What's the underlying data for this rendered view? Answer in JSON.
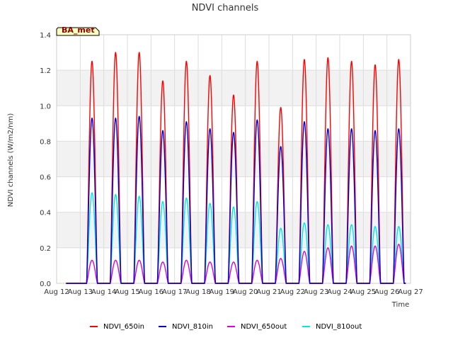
{
  "chart_data": {
    "type": "line",
    "title": "NDVI channels",
    "xlabel": "Time",
    "ylabel": "NDVI channels (W/m2/nm)",
    "ylim": [
      0,
      1.4
    ],
    "yticks": [
      "0.0",
      "0.2",
      "0.4",
      "0.6",
      "0.8",
      "1.0",
      "1.2",
      "1.4"
    ],
    "xlim": [
      12,
      27
    ],
    "xticks": [
      "Aug 12",
      "Aug 13",
      "Aug 14",
      "Aug 15",
      "Aug 16",
      "Aug 17",
      "Aug 18",
      "Aug 19",
      "Aug 20",
      "Aug 21",
      "Aug 22",
      "Aug 23",
      "Aug 24",
      "Aug 25",
      "Aug 26",
      "Aug 27"
    ],
    "badge": "BA_met",
    "grid": true,
    "legend_position": "bottom",
    "day_centers": [
      13.5,
      14.5,
      15.5,
      16.5,
      17.5,
      18.5,
      19.5,
      20.5,
      21.5,
      22.5,
      23.5,
      24.5,
      25.5,
      26.5
    ],
    "series": [
      {
        "name": "NDVI_650in",
        "color": "#ff0000",
        "peaks": [
          1.25,
          1.3,
          1.3,
          1.14,
          1.25,
          1.17,
          1.06,
          1.25,
          0.99,
          1.26,
          1.27,
          1.25,
          1.23,
          1.26
        ]
      },
      {
        "name": "NDVI_810in",
        "color": "#0000cc",
        "peaks": [
          0.93,
          0.93,
          0.94,
          0.86,
          0.91,
          0.87,
          0.85,
          0.92,
          0.77,
          0.91,
          0.87,
          0.87,
          0.86,
          0.87
        ]
      },
      {
        "name": "NDVI_650out",
        "color": "#dd00dd",
        "peaks": [
          0.13,
          0.13,
          0.13,
          0.12,
          0.13,
          0.12,
          0.12,
          0.13,
          0.14,
          0.18,
          0.2,
          0.21,
          0.21,
          0.22
        ]
      },
      {
        "name": "NDVI_810out",
        "color": "#00e5e5",
        "peaks": [
          0.51,
          0.5,
          0.49,
          0.46,
          0.48,
          0.45,
          0.43,
          0.46,
          0.31,
          0.34,
          0.33,
          0.33,
          0.32,
          0.32
        ]
      }
    ]
  }
}
